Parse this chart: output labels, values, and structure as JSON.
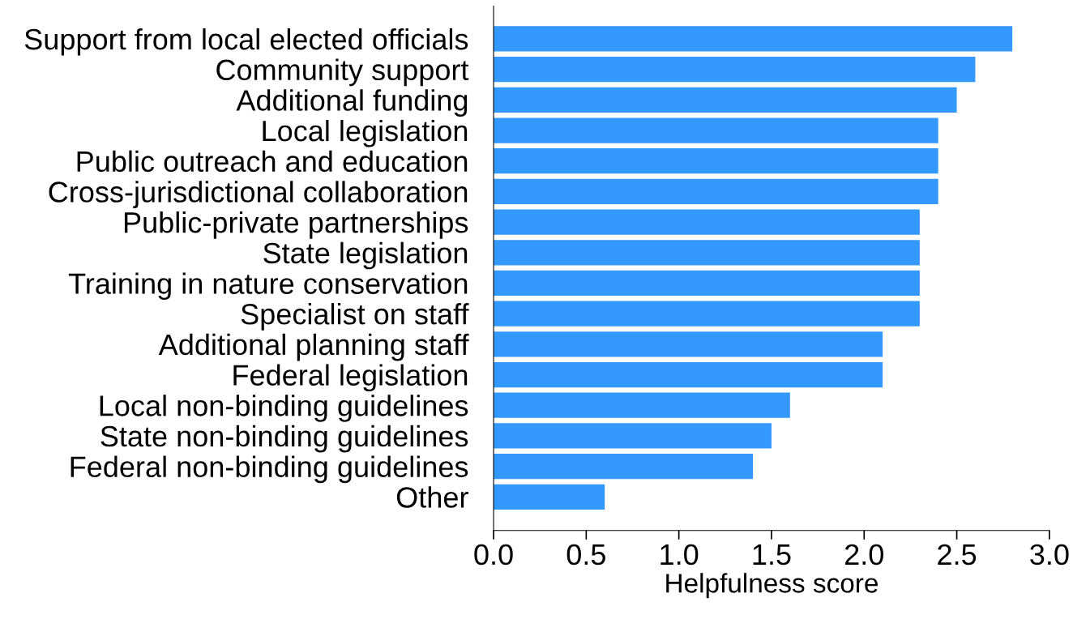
{
  "chart_data": {
    "type": "bar",
    "orientation": "horizontal",
    "xlabel": "Helpfulness score",
    "categories": [
      "Support from local elected officials",
      "Community support",
      "Additional funding",
      "Local legislation",
      "Public outreach and education",
      "Cross-jurisdictional collaboration",
      "Public-private partnerships",
      "State legislation",
      "Training in nature conservation",
      "Specialist on staff",
      "Additional planning staff",
      "Federal legislation",
      "Local non-binding guidelines",
      "State non-binding guidelines",
      "Federal non-binding guidelines",
      "Other"
    ],
    "values": [
      2.8,
      2.6,
      2.5,
      2.4,
      2.4,
      2.4,
      2.3,
      2.3,
      2.3,
      2.3,
      2.1,
      2.1,
      1.6,
      1.5,
      1.4,
      0.6
    ],
    "color": "#3399ff",
    "xlim": [
      0,
      3
    ],
    "xticks": [
      {
        "value": 0,
        "label": "0.0"
      },
      {
        "value": 0.5,
        "label": "0.5"
      },
      {
        "value": 1,
        "label": "1.0"
      },
      {
        "value": 1.5,
        "label": "1.5"
      },
      {
        "value": 2,
        "label": "2.0"
      },
      {
        "value": 2.5,
        "label": "2.5"
      },
      {
        "value": 3,
        "label": "3.0"
      }
    ],
    "grid": false,
    "legend": false
  }
}
